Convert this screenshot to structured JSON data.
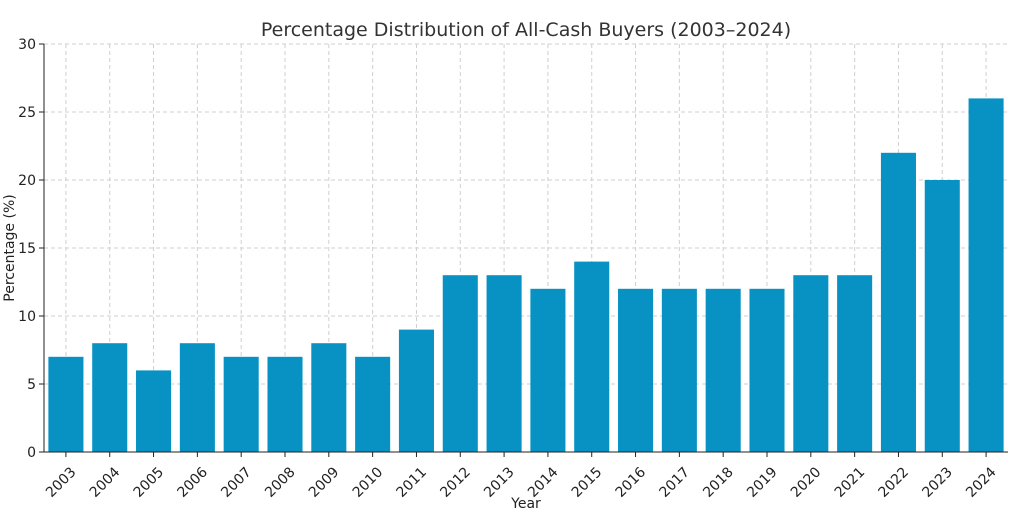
{
  "chart_data": {
    "type": "bar",
    "title": "Percentage Distribution of All-Cash Buyers (2003–2024)",
    "xlabel": "Year",
    "ylabel": "Percentage (%)",
    "categories": [
      "2003",
      "2004",
      "2005",
      "2006",
      "2007",
      "2008",
      "2009",
      "2010",
      "2011",
      "2012",
      "2013",
      "2014",
      "2015",
      "2016",
      "2017",
      "2018",
      "2019",
      "2020",
      "2021",
      "2022",
      "2023",
      "2024"
    ],
    "values": [
      7,
      8,
      6,
      8,
      7,
      7,
      8,
      7,
      9,
      13,
      13,
      12,
      14,
      12,
      12,
      12,
      12,
      13,
      13,
      22,
      20,
      26
    ],
    "ylim": [
      0,
      30
    ],
    "yticks": [
      0,
      5,
      10,
      15,
      20,
      25,
      30
    ],
    "grid": true,
    "bar_color": "#0892c3",
    "legend": "none"
  }
}
